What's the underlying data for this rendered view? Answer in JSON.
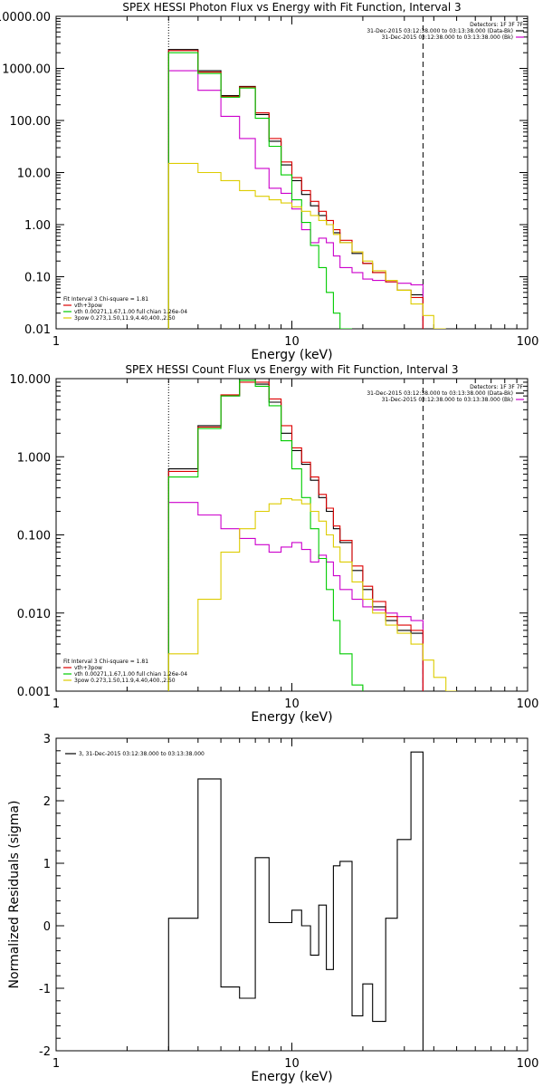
{
  "chart_data": [
    {
      "type": "line",
      "title": "SPEX HESSI Photon Flux vs Energy with Fit Function, Interval 3",
      "xlabel": "Energy (keV)",
      "ylabel": "",
      "xscale": "log",
      "yscale": "log",
      "xlim": [
        1,
        100
      ],
      "ylim": [
        0.01,
        10000
      ],
      "x_tick_labels": [
        "1",
        "10",
        "100"
      ],
      "y_tick_labels": [
        "0.01",
        "0.10",
        "1.00",
        "10.00",
        "100.00",
        "1000.00",
        "10000.00"
      ],
      "legend_header": "Detectors: 1F 3F 7F",
      "legend": [
        {
          "label": "31-Dec-2015 03:12:38.000 to 03:13:38.000 (Data-Bk)",
          "color": "#000000"
        },
        {
          "label": "31-Dec-2015 03:12:38.000 to 03:13:38.000 (Bk)",
          "color": "#cc00cc"
        }
      ],
      "fit_info": {
        "header": "Fit Interval 3   Chi-square = 1.81",
        "items": [
          {
            "label": "vth+3pow",
            "color": "#dd0000"
          },
          {
            "label": "vth 0.00271,1.67,1.00  full chian 1.26e-04",
            "color": "#00cc00"
          },
          {
            "label": "3pow 0.273,1.50,11.9,4.40,400.,2.50",
            "color": "#ddcc00"
          }
        ]
      },
      "fit_range": [
        3,
        36
      ],
      "bin_edges": [
        3.0,
        4.0,
        5.0,
        6.0,
        7.0,
        8.0,
        9.0,
        10.0,
        11.0,
        12.0,
        13.0,
        14.0,
        15.0,
        16.0,
        18.0,
        20.0,
        22.0,
        25.0,
        28.0,
        32.0,
        36.0,
        40.0,
        45.0,
        50.0
      ],
      "series": [
        {
          "name": "Data-Bk",
          "color": "#000000",
          "values": [
            2300,
            900,
            300,
            450,
            130,
            40,
            14,
            7.0,
            3.8,
            2.3,
            1.5,
            1.0,
            0.7,
            0.45,
            0.28,
            0.18,
            0.12,
            0.08,
            0.055,
            0.045,
            null,
            null,
            null
          ]
        },
        {
          "name": "Bk",
          "color": "#cc00cc",
          "values": [
            900,
            380,
            120,
            45,
            12,
            5.0,
            4.0,
            2.0,
            0.8,
            0.45,
            0.55,
            0.45,
            0.25,
            0.15,
            0.12,
            0.09,
            0.085,
            0.08,
            0.075,
            0.07,
            null,
            null,
            null
          ]
        },
        {
          "name": "vth+3pow",
          "color": "#dd0000",
          "values": [
            2200,
            850,
            290,
            440,
            140,
            45,
            16,
            8.0,
            4.5,
            2.8,
            1.8,
            1.2,
            0.8,
            0.5,
            0.3,
            0.18,
            0.12,
            0.08,
            0.055,
            0.04,
            null,
            null,
            null
          ]
        },
        {
          "name": "vth",
          "color": "#00cc00",
          "values": [
            2000,
            800,
            280,
            420,
            110,
            32,
            9.0,
            3.0,
            1.1,
            0.4,
            0.15,
            0.05,
            0.02,
            0.008,
            null,
            null,
            null,
            null,
            null,
            null,
            null,
            null,
            null
          ]
        },
        {
          "name": "3pow",
          "color": "#ddcc00",
          "values": [
            15,
            10,
            7.0,
            4.5,
            3.5,
            3.0,
            2.6,
            2.2,
            1.8,
            1.5,
            1.2,
            1.0,
            0.65,
            0.45,
            0.3,
            0.2,
            0.13,
            0.085,
            0.055,
            0.03,
            0.018,
            0.01,
            null
          ]
        }
      ]
    },
    {
      "type": "line",
      "title": "SPEX HESSI Count Flux vs Energy with Fit Function, Interval 3",
      "xlabel": "Energy (keV)",
      "ylabel": "",
      "xscale": "log",
      "yscale": "log",
      "xlim": [
        1,
        100
      ],
      "ylim": [
        0.001,
        10
      ],
      "x_tick_labels": [
        "1",
        "10",
        "100"
      ],
      "y_tick_labels": [
        "0.001",
        "0.010",
        "0.100",
        "1.000",
        "10.000"
      ],
      "legend_header": "Detectors: 1F 3F 7F",
      "legend": [
        {
          "label": "31-Dec-2015 03:12:38.000 to 03:13:38.000 (Data-Bk)",
          "color": "#000000"
        },
        {
          "label": "31-Dec-2015 03:12:38.000 to 03:13:38.000 (Bk)",
          "color": "#cc00cc"
        }
      ],
      "fit_info": {
        "header": "Fit Interval 3   Chi-square = 1.81",
        "items": [
          {
            "label": "vth+3pow",
            "color": "#dd0000"
          },
          {
            "label": "vth 0.00271,1.67,1.00  full chian 1.26e-04",
            "color": "#00cc00"
          },
          {
            "label": "3pow 0.273,1.50,11.9,4.40,400.,2.50",
            "color": "#ddcc00"
          }
        ]
      },
      "fit_range": [
        3,
        36
      ],
      "bin_edges": [
        3.0,
        4.0,
        5.0,
        6.0,
        7.0,
        8.0,
        9.0,
        10.0,
        11.0,
        12.0,
        13.0,
        14.0,
        15.0,
        16.0,
        18.0,
        20.0,
        22.0,
        25.0,
        28.0,
        32.0,
        36.0,
        40.0,
        45.0,
        50.0
      ],
      "series": [
        {
          "name": "Data-Bk",
          "color": "#000000",
          "values": [
            0.7,
            2.5,
            6.0,
            9.5,
            8.5,
            5.0,
            2.0,
            1.2,
            0.8,
            0.5,
            0.3,
            0.2,
            0.12,
            0.08,
            0.035,
            0.02,
            0.012,
            0.008,
            0.006,
            0.0055,
            null,
            null,
            null
          ]
        },
        {
          "name": "Bk",
          "color": "#cc00cc",
          "values": [
            0.26,
            0.18,
            0.12,
            0.09,
            0.075,
            0.06,
            0.07,
            0.08,
            0.065,
            0.045,
            0.055,
            0.045,
            0.03,
            0.02,
            0.015,
            0.012,
            0.011,
            0.01,
            0.009,
            0.008,
            null,
            null,
            null
          ]
        },
        {
          "name": "vth+3pow",
          "color": "#dd0000",
          "values": [
            0.65,
            2.4,
            6.2,
            9.0,
            9.0,
            5.5,
            2.5,
            1.3,
            0.85,
            0.55,
            0.33,
            0.22,
            0.13,
            0.085,
            0.04,
            0.022,
            0.014,
            0.009,
            0.007,
            0.006,
            null,
            null,
            null
          ]
        },
        {
          "name": "vth",
          "color": "#00cc00",
          "values": [
            0.55,
            2.3,
            6.0,
            9.5,
            8.0,
            4.5,
            1.6,
            0.7,
            0.3,
            0.12,
            0.05,
            0.02,
            0.008,
            0.003,
            0.0012,
            null,
            null,
            null,
            null,
            null,
            null,
            null,
            null
          ]
        },
        {
          "name": "3pow",
          "color": "#ddcc00",
          "values": [
            0.003,
            0.015,
            0.06,
            0.12,
            0.2,
            0.25,
            0.29,
            0.28,
            0.25,
            0.2,
            0.15,
            0.1,
            0.07,
            0.045,
            0.025,
            0.015,
            0.01,
            0.007,
            0.0055,
            0.004,
            0.0025,
            0.0015,
            0.001
          ]
        }
      ]
    },
    {
      "type": "line",
      "title": "",
      "xlabel": "Energy (keV)",
      "ylabel": "Normalized Residuals (sigma)",
      "xscale": "log",
      "yscale": "linear",
      "xlim": [
        1,
        100
      ],
      "ylim": [
        -2,
        3
      ],
      "x_tick_labels": [
        "1",
        "10",
        "100"
      ],
      "y_tick_labels": [
        "-2",
        "-1",
        "0",
        "1",
        "2",
        "3"
      ],
      "legend": [
        {
          "label": "3, 31-Dec-2015 03:12:38.000 to 03:13:38.000",
          "color": "#000000"
        }
      ],
      "bin_edges": [
        3.0,
        4.0,
        5.0,
        6.0,
        7.0,
        8.0,
        9.0,
        10.0,
        11.0,
        12.0,
        13.0,
        14.0,
        15.0,
        16.0,
        18.0,
        20.0,
        22.0,
        25.0,
        28.0,
        32.0,
        36.0
      ],
      "series": [
        {
          "name": "residuals",
          "color": "#000000",
          "values": [
            0.12,
            2.35,
            -0.98,
            -1.16,
            1.09,
            0.05,
            0.05,
            0.25,
            0.0,
            -0.47,
            0.33,
            -0.7,
            0.96,
            1.03,
            -1.44,
            -0.93,
            -1.53,
            0.12,
            1.38,
            2.78
          ]
        }
      ]
    }
  ]
}
